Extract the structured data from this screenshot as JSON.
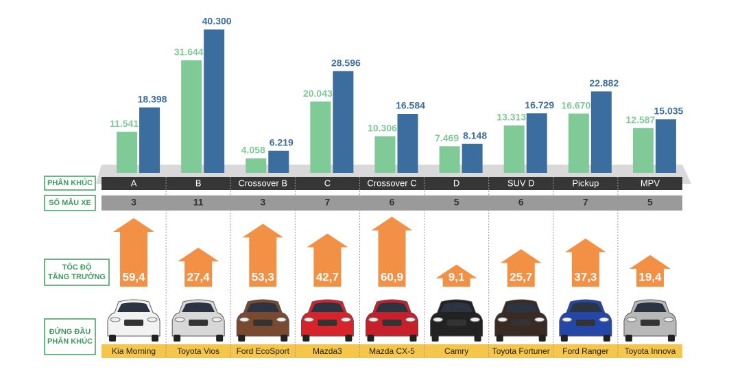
{
  "chart_data": {
    "type": "bar",
    "categories": [
      "A",
      "B",
      "Crossover B",
      "C",
      "Crossover C",
      "D",
      "SUV D",
      "Pickup",
      "MPV"
    ],
    "series": [
      {
        "color": "#7fca97",
        "values": [
          11541,
          31644,
          4058,
          20043,
          10306,
          7469,
          13313,
          16670,
          12587
        ],
        "value_labels": [
          "11.541",
          "31.644",
          "4.058",
          "20.043",
          "10.306",
          "7.469",
          "13.313",
          "16.670",
          "12.587"
        ]
      },
      {
        "color": "#3b6e9e",
        "values": [
          18398,
          40300,
          6219,
          28596,
          16584,
          8148,
          16729,
          22882,
          15035
        ],
        "value_labels": [
          "18.398",
          "40.300",
          "6.219",
          "28.596",
          "16.584",
          "8.148",
          "16.729",
          "22.882",
          "15.035"
        ]
      }
    ],
    "row_labels": {
      "segment": "PHÂN KHÚC",
      "models": "SỐ MẪU XE",
      "growth": "TỐC ĐỘ TĂNG TRƯỞNG",
      "leader": "ĐỨNG ĐẦU PHÂN KHÚC"
    },
    "model_counts": [
      3,
      11,
      3,
      7,
      6,
      5,
      6,
      7,
      5
    ],
    "growth": {
      "color": "#f29046",
      "values": [
        59.4,
        27.4,
        53.3,
        42.7,
        60.9,
        9.1,
        25.7,
        37.3,
        19.4
      ],
      "value_labels": [
        "59,4",
        "27,4",
        "53,3",
        "42,7",
        "60,9",
        "9,1",
        "25,7",
        "37,3",
        "19,4"
      ]
    },
    "leaders": [
      "Kia Morning",
      "Toyota Vios",
      "Ford EcoSport",
      "Mazda3",
      "Mazda CX-5",
      "Camry",
      "Toyota Fortuner",
      "Ford Ranger",
      "Toyota Innova"
    ]
  }
}
